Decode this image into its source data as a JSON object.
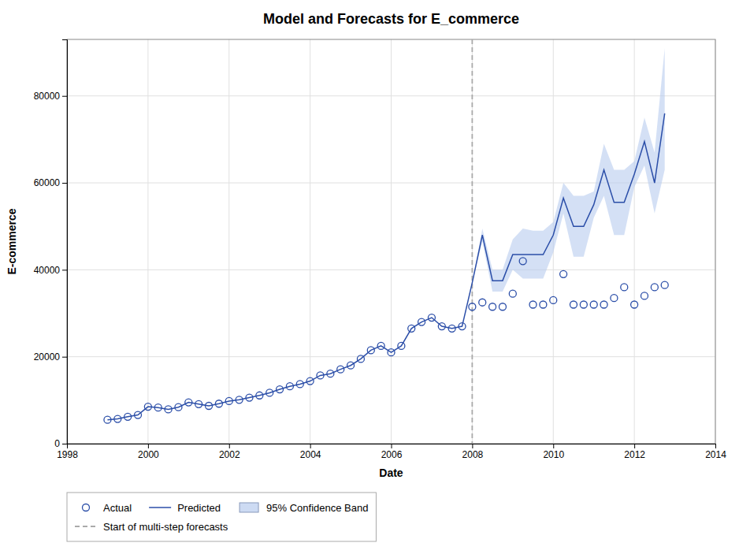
{
  "chart_data": {
    "type": "line",
    "title": "Model and Forecasts for E_commerce",
    "xlabel": "Date",
    "ylabel": "E-commerce",
    "xlim": [
      1998,
      2014
    ],
    "ylim": [
      0,
      93000
    ],
    "xticks": [
      1998,
      2000,
      2002,
      2004,
      2006,
      2008,
      2010,
      2012,
      2014
    ],
    "yticks": [
      0,
      20000,
      40000,
      60000,
      80000
    ],
    "grid": true,
    "series": [
      {
        "name": "Actual",
        "type": "scatter",
        "marker": "circle",
        "color": "#2b4ea8",
        "x": [
          1999.0,
          1999.25,
          1999.5,
          1999.75,
          2000.0,
          2000.25,
          2000.5,
          2000.75,
          2001.0,
          2001.25,
          2001.5,
          2001.75,
          2002.0,
          2002.25,
          2002.5,
          2002.75,
          2003.0,
          2003.25,
          2003.5,
          2003.75,
          2004.0,
          2004.25,
          2004.5,
          2004.75,
          2005.0,
          2005.25,
          2005.5,
          2005.75,
          2006.0,
          2006.25,
          2006.5,
          2006.75,
          2007.0,
          2007.25,
          2007.5,
          2007.75,
          2008.0,
          2008.25,
          2008.5,
          2008.75,
          2009.0,
          2009.25,
          2009.5,
          2009.75,
          2010.0,
          2010.25,
          2010.5,
          2010.75,
          2011.0,
          2011.25,
          2011.5,
          2011.75,
          2012.0,
          2012.25,
          2012.5,
          2012.75
        ],
        "values": [
          5500,
          5700,
          6200,
          6600,
          8500,
          8300,
          7900,
          8400,
          9500,
          9100,
          8700,
          9200,
          9800,
          10100,
          10600,
          11100,
          11700,
          12500,
          13200,
          13700,
          14400,
          15700,
          16100,
          17100,
          18000,
          19500,
          21500,
          22500,
          21000,
          22500,
          26500,
          28000,
          29000,
          27000,
          26500,
          27000,
          31500,
          32500,
          31500,
          31500,
          34500,
          42000,
          32000,
          32000,
          33000,
          39000,
          32000,
          32000,
          32000,
          32000,
          33500,
          36000,
          32000,
          34000,
          36000,
          36500
        ]
      },
      {
        "name": "Predicted",
        "type": "line",
        "color": "#2b4ea8",
        "x": [
          1999.0,
          1999.25,
          1999.5,
          1999.75,
          2000.0,
          2000.25,
          2000.5,
          2000.75,
          2001.0,
          2001.25,
          2001.5,
          2001.75,
          2002.0,
          2002.25,
          2002.5,
          2002.75,
          2003.0,
          2003.25,
          2003.5,
          2003.75,
          2004.0,
          2004.25,
          2004.5,
          2004.75,
          2005.0,
          2005.25,
          2005.5,
          2005.75,
          2006.0,
          2006.25,
          2006.5,
          2006.75,
          2007.0,
          2007.25,
          2007.5,
          2007.75,
          2008.0,
          2008.25,
          2008.5,
          2008.75,
          2009.0,
          2009.25,
          2009.5,
          2009.75,
          2010.0,
          2010.25,
          2010.5,
          2010.75,
          2011.0,
          2011.25,
          2011.5,
          2011.75,
          2012.0,
          2012.25,
          2012.5,
          2012.75
        ],
        "values": [
          5500,
          5700,
          6200,
          6600,
          8500,
          8300,
          7900,
          8400,
          9500,
          9100,
          8700,
          9200,
          9800,
          10100,
          10600,
          11100,
          11700,
          12500,
          13200,
          13700,
          14400,
          15700,
          16100,
          17100,
          18000,
          19500,
          21500,
          22500,
          21000,
          22500,
          26500,
          28000,
          29000,
          27000,
          26500,
          27000,
          37000,
          48000,
          37500,
          37500,
          43500,
          43500,
          43500,
          43500,
          48000,
          56500,
          50000,
          50000,
          55000,
          63000,
          55500,
          55500,
          62000,
          69500,
          60000,
          76000
        ]
      },
      {
        "name": "95% Confidence Band",
        "type": "area",
        "color": "#b8ccee",
        "x": [
          2008.0,
          2008.25,
          2008.5,
          2008.75,
          2009.0,
          2009.25,
          2009.5,
          2009.75,
          2010.0,
          2010.25,
          2010.5,
          2010.75,
          2011.0,
          2011.25,
          2011.5,
          2011.75,
          2012.0,
          2012.25,
          2012.5,
          2012.75
        ],
        "upper": [
          37000,
          49500,
          40000,
          40000,
          47000,
          49500,
          49000,
          49000,
          51000,
          60000,
          57000,
          57000,
          58000,
          69000,
          63000,
          63000,
          65000,
          75000,
          67000,
          91000
        ],
        "lower": [
          37000,
          46500,
          35000,
          35000,
          40000,
          38000,
          38000,
          38000,
          44000,
          53000,
          43000,
          43000,
          52000,
          57000,
          48000,
          48000,
          59000,
          64000,
          53000,
          63000
        ]
      },
      {
        "name": "Start of multi-step forecasts",
        "type": "vline",
        "line_style": "dashed",
        "color": "#aaaaaa",
        "x": 2008.0
      }
    ]
  }
}
